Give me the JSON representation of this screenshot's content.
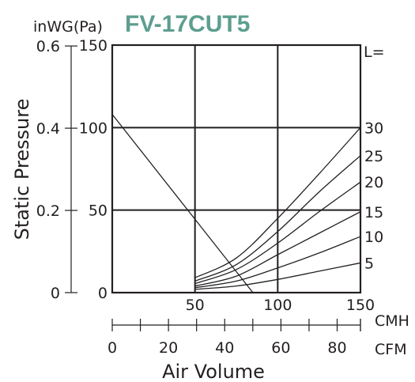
{
  "chart_data": {
    "type": "line",
    "title": "FV-17CUT5",
    "title_color": "#5d9e8f",
    "pressure_unit_label": "inWG(Pa)",
    "ylabel": "Static Pressure",
    "xlabel": "Air Volume",
    "cmh_unit": "CMH",
    "cfm_unit": "CFM",
    "duct_length_label": "L=",
    "xlim_cmh": [
      0,
      150
    ],
    "ylim_pa": [
      0,
      150
    ],
    "grid": true,
    "cmh_ticks": [
      "50",
      "100",
      "150"
    ],
    "pa_ticks": [
      "0",
      "50",
      "100",
      "150"
    ],
    "inwg_ticks": [
      "0",
      "0.2",
      "0.4",
      "0.6"
    ],
    "cfm_ticks": [
      "0",
      "20",
      "40",
      "60",
      "80"
    ],
    "fan_curve": {
      "x": [
        0,
        85
      ],
      "y": [
        108,
        0
      ]
    },
    "system_curves": [
      {
        "name": "30",
        "x": [
          50,
          75,
          100,
          125,
          150
        ],
        "y": [
          9,
          21,
          45,
          72,
          100
        ]
      },
      {
        "name": "25",
        "x": [
          50,
          75,
          100,
          125,
          150
        ],
        "y": [
          7,
          17,
          37,
          61,
          83
        ]
      },
      {
        "name": "20",
        "x": [
          50,
          75,
          100,
          125,
          150
        ],
        "y": [
          5.5,
          14,
          30,
          49,
          67
        ]
      },
      {
        "name": "15",
        "x": [
          50,
          75,
          100,
          125,
          150
        ],
        "y": [
          4,
          10,
          23,
          36,
          49
        ]
      },
      {
        "name": "10",
        "x": [
          50,
          75,
          100,
          125,
          150
        ],
        "y": [
          3,
          7,
          15,
          24,
          34
        ]
      },
      {
        "name": "5",
        "x": [
          50,
          75,
          100,
          125,
          150
        ],
        "y": [
          2,
          4,
          8,
          13,
          18
        ]
      }
    ]
  }
}
